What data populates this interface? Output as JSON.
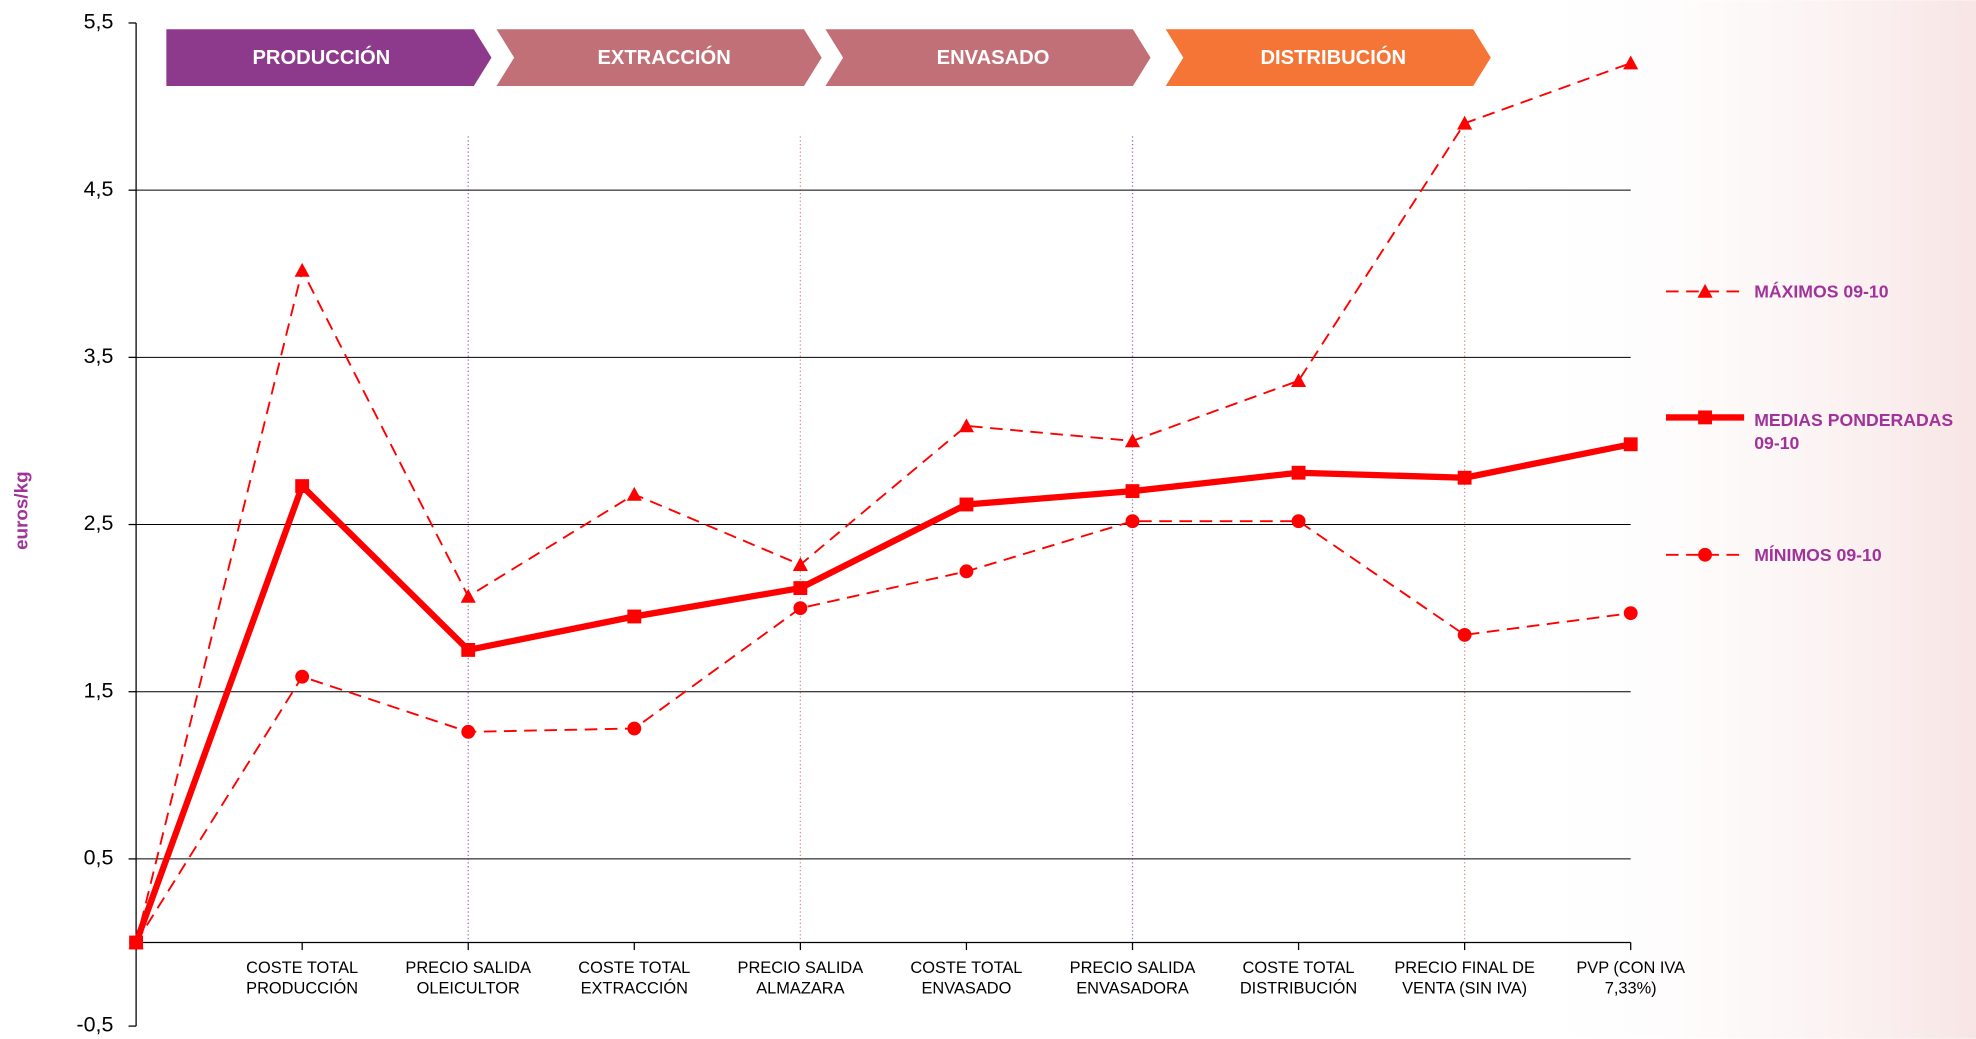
{
  "chart_data": {
    "type": "line",
    "ylabel": "euros/kg",
    "categories": [
      null,
      "COSTE TOTAL PRODUCCIÓN",
      "PRECIO SALIDA OLEICULTOR",
      "COSTE TOTAL EXTRACCIÓN",
      "PRECIO SALIDA ALMAZARA",
      "COSTE TOTAL ENVASADO",
      "PRECIO SALIDA ENVASADORA",
      "COSTE TOTAL DISTRIBUCIÓN",
      "PRECIO FINAL DE VENTA (SIN IVA)",
      "PVP (CON IVA 7,33%)"
    ],
    "series": [
      {
        "name": "MÁXIMOS 09-10",
        "color": "#ff0000",
        "values": [
          0,
          4.02,
          2.07,
          2.68,
          2.26,
          3.09,
          3.0,
          3.36,
          4.9,
          5.26
        ]
      },
      {
        "name": "MEDIAS PONDERADAS 09-10",
        "color": "#ff0000",
        "values": [
          0,
          2.73,
          1.75,
          1.95,
          2.12,
          2.62,
          2.7,
          2.81,
          2.78,
          2.98
        ]
      },
      {
        "name": "MÍNIMOS 09-10",
        "color": "#ff0000",
        "values": [
          0,
          1.59,
          1.26,
          1.28,
          2.0,
          2.22,
          2.52,
          2.52,
          1.84,
          1.97
        ]
      }
    ],
    "ylim": [
      -0.5,
      5.5
    ],
    "yticks": [
      {
        "value": -0.5,
        "label": "-0,5"
      },
      {
        "value": 0.5,
        "label": "0,5"
      },
      {
        "value": 1.5,
        "label": "1,5"
      },
      {
        "value": 2.5,
        "label": "2,5"
      },
      {
        "value": 3.5,
        "label": "3,5"
      },
      {
        "value": 4.5,
        "label": "4,5"
      },
      {
        "value": 5.5,
        "label": "5,5"
      }
    ],
    "grid": true,
    "legend": "right",
    "stages": [
      {
        "label": "PRODUCCIÓN",
        "color": "#8e3a8c"
      },
      {
        "label": "EXTRACCIÓN",
        "color": "#c27078"
      },
      {
        "label": "ENVASADO",
        "color": "#c27078"
      },
      {
        "label": "DISTRIBUCIÓN",
        "color": "#f47535"
      }
    ]
  }
}
